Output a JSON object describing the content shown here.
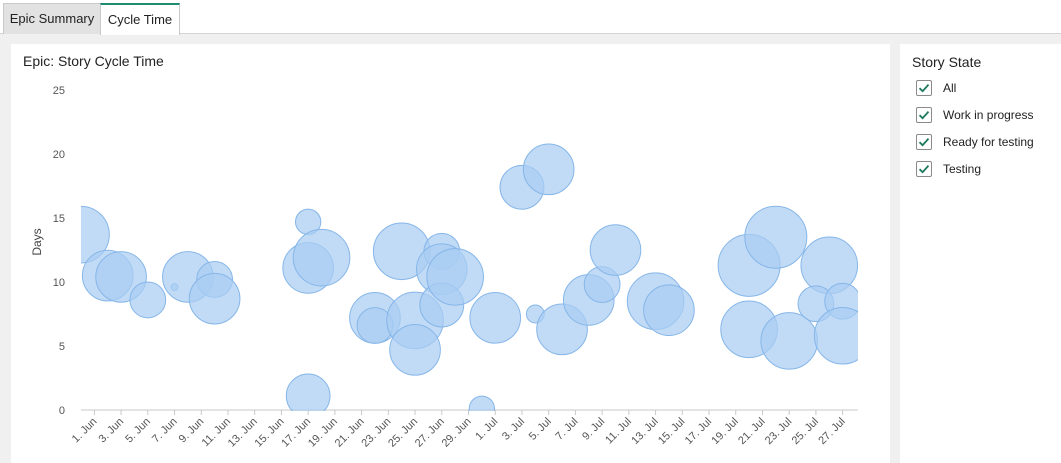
{
  "tabs": [
    {
      "label": "Epic Summary",
      "active": false
    },
    {
      "label": "Cycle Time",
      "active": true
    }
  ],
  "chart": {
    "title": "Epic: Story Cycle Time"
  },
  "filter": {
    "title": "Story State",
    "options": [
      {
        "label": "All",
        "checked": true
      },
      {
        "label": "Work in progress",
        "checked": true
      },
      {
        "label": "Ready for testing",
        "checked": true
      },
      {
        "label": "Testing",
        "checked": true
      }
    ]
  },
  "colors": {
    "bubble_fill": "#a9cdf2",
    "bubble_stroke": "#86b6e8",
    "accent": "#1e8a6e",
    "check": "#1e7a5e"
  },
  "chart_data": {
    "type": "scatter",
    "title": "Epic: Story Cycle Time",
    "xlabel": "",
    "ylabel": "Days",
    "ylim": [
      0,
      25
    ],
    "yticks": [
      0,
      5,
      10,
      15,
      20,
      25
    ],
    "xlim": [
      "2020-05-31",
      "2020-07-28"
    ],
    "xticks": [
      {
        "date": "2020-06-01",
        "label": "1. Jun"
      },
      {
        "date": "2020-06-03",
        "label": "3. Jun"
      },
      {
        "date": "2020-06-05",
        "label": "5. Jun"
      },
      {
        "date": "2020-06-07",
        "label": "7. Jun"
      },
      {
        "date": "2020-06-09",
        "label": "9. Jun"
      },
      {
        "date": "2020-06-11",
        "label": "11. Jun"
      },
      {
        "date": "2020-06-13",
        "label": "13. Jun"
      },
      {
        "date": "2020-06-15",
        "label": "15. Jun"
      },
      {
        "date": "2020-06-17",
        "label": "17. Jun"
      },
      {
        "date": "2020-06-19",
        "label": "19. Jun"
      },
      {
        "date": "2020-06-21",
        "label": "21. Jun"
      },
      {
        "date": "2020-06-23",
        "label": "23. Jun"
      },
      {
        "date": "2020-06-25",
        "label": "25. Jun"
      },
      {
        "date": "2020-06-27",
        "label": "27. Jun"
      },
      {
        "date": "2020-06-29",
        "label": "29. Jun"
      },
      {
        "date": "2020-07-01",
        "label": "1. Jul"
      },
      {
        "date": "2020-07-03",
        "label": "3. Jul"
      },
      {
        "date": "2020-07-05",
        "label": "5. Jul"
      },
      {
        "date": "2020-07-07",
        "label": "7. Jul"
      },
      {
        "date": "2020-07-09",
        "label": "9. Jul"
      },
      {
        "date": "2020-07-11",
        "label": "11. Jul"
      },
      {
        "date": "2020-07-13",
        "label": "13. Jul"
      },
      {
        "date": "2020-07-15",
        "label": "15. Jul"
      },
      {
        "date": "2020-07-17",
        "label": "17. Jul"
      },
      {
        "date": "2020-07-19",
        "label": "19. Jul"
      },
      {
        "date": "2020-07-21",
        "label": "21. Jul"
      },
      {
        "date": "2020-07-23",
        "label": "23. Jul"
      },
      {
        "date": "2020-07-25",
        "label": "25. Jul"
      },
      {
        "date": "2020-07-27",
        "label": "27. Jul"
      }
    ],
    "grid": false,
    "legend": "none",
    "points": [
      {
        "x": "2020-05-31",
        "y": 13.7,
        "size": 5
      },
      {
        "x": "2020-06-02",
        "y": 10.5,
        "size": 4
      },
      {
        "x": "2020-06-03",
        "y": 10.4,
        "size": 4
      },
      {
        "x": "2020-06-05",
        "y": 8.6,
        "size": 2
      },
      {
        "x": "2020-06-07",
        "y": 9.6,
        "size": 0.05
      },
      {
        "x": "2020-06-08",
        "y": 10.4,
        "size": 4
      },
      {
        "x": "2020-06-10",
        "y": 10.2,
        "size": 2
      },
      {
        "x": "2020-06-10",
        "y": 8.7,
        "size": 4
      },
      {
        "x": "2020-06-17",
        "y": 14.7,
        "size": 1
      },
      {
        "x": "2020-06-17",
        "y": 11.1,
        "size": 4
      },
      {
        "x": "2020-06-17",
        "y": 1.1,
        "size": 3
      },
      {
        "x": "2020-06-18",
        "y": 11.9,
        "size": 5
      },
      {
        "x": "2020-06-22",
        "y": 7.2,
        "size": 4
      },
      {
        "x": "2020-06-22",
        "y": 6.6,
        "size": 2
      },
      {
        "x": "2020-06-24",
        "y": 12.4,
        "size": 5
      },
      {
        "x": "2020-06-25",
        "y": 7.0,
        "size": 5
      },
      {
        "x": "2020-06-25",
        "y": 4.7,
        "size": 4
      },
      {
        "x": "2020-06-27",
        "y": 12.4,
        "size": 2
      },
      {
        "x": "2020-06-27",
        "y": 11.0,
        "size": 4
      },
      {
        "x": "2020-06-27",
        "y": 8.2,
        "size": 3
      },
      {
        "x": "2020-06-28",
        "y": 10.4,
        "size": 5
      },
      {
        "x": "2020-06-30",
        "y": 0.1,
        "size": 1
      },
      {
        "x": "2020-07-01",
        "y": 7.2,
        "size": 4
      },
      {
        "x": "2020-07-03",
        "y": 17.4,
        "size": 3
      },
      {
        "x": "2020-07-04",
        "y": 7.5,
        "size": 0.5
      },
      {
        "x": "2020-07-05",
        "y": 18.8,
        "size": 4
      },
      {
        "x": "2020-07-06",
        "y": 6.3,
        "size": 4
      },
      {
        "x": "2020-07-08",
        "y": 8.6,
        "size": 4
      },
      {
        "x": "2020-07-09",
        "y": 9.8,
        "size": 2
      },
      {
        "x": "2020-07-10",
        "y": 12.5,
        "size": 4
      },
      {
        "x": "2020-07-13",
        "y": 8.5,
        "size": 5
      },
      {
        "x": "2020-07-14",
        "y": 7.8,
        "size": 4
      },
      {
        "x": "2020-07-20",
        "y": 11.3,
        "size": 6
      },
      {
        "x": "2020-07-20",
        "y": 6.3,
        "size": 5
      },
      {
        "x": "2020-07-22",
        "y": 13.5,
        "size": 6
      },
      {
        "x": "2020-07-23",
        "y": 5.4,
        "size": 5
      },
      {
        "x": "2020-07-26",
        "y": 11.3,
        "size": 5
      },
      {
        "x": "2020-07-25",
        "y": 8.3,
        "size": 2
      },
      {
        "x": "2020-07-27",
        "y": 8.5,
        "size": 2
      },
      {
        "x": "2020-07-27",
        "y": 5.8,
        "size": 5
      }
    ]
  }
}
